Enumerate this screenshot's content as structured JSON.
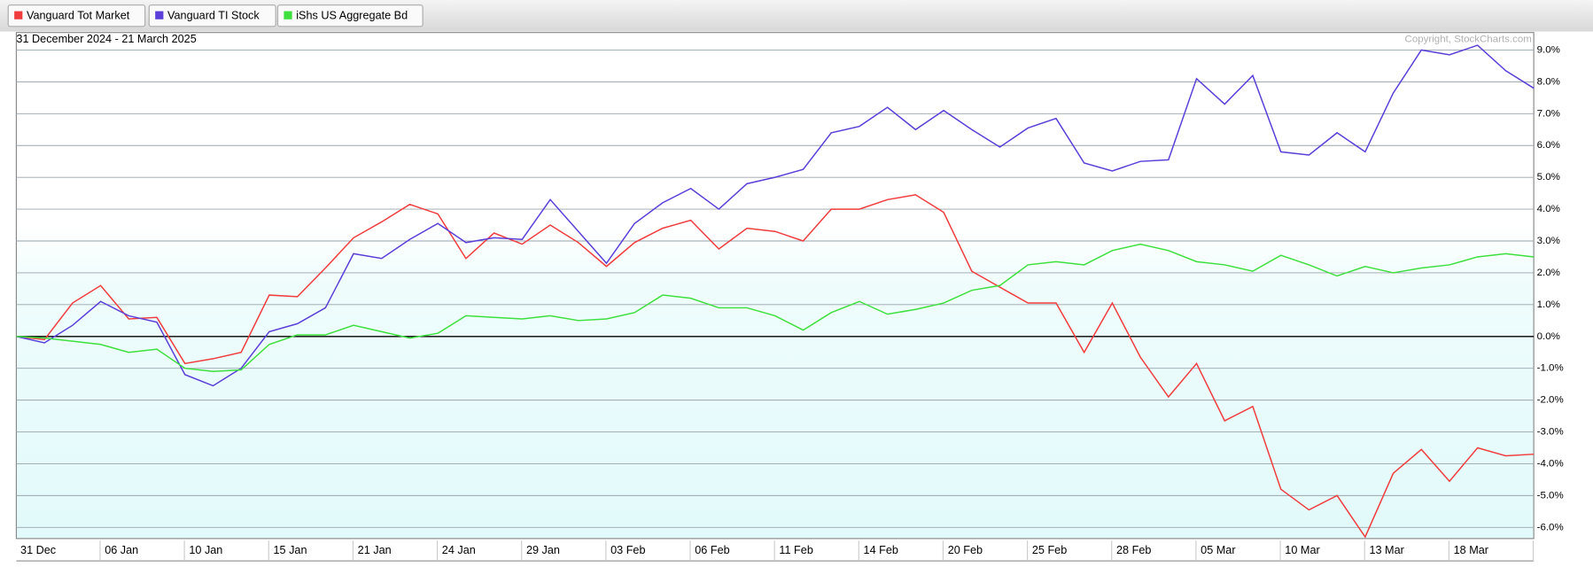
{
  "chart_data": {
    "type": "line",
    "subtitle": "31 December 2024 - 21 March 2025",
    "annotation": "Copyright, StockCharts.com",
    "categories": [
      "31 Dec",
      null,
      null,
      "06 Jan",
      null,
      null,
      "10 Jan",
      null,
      null,
      "15 Jan",
      null,
      null,
      "21 Jan",
      null,
      null,
      "24 Jan",
      null,
      null,
      "29 Jan",
      null,
      null,
      "03 Feb",
      null,
      null,
      "06 Feb",
      null,
      null,
      "11 Feb",
      null,
      null,
      "14 Feb",
      null,
      null,
      "20 Feb",
      null,
      null,
      "25 Feb",
      null,
      null,
      "28 Feb",
      null,
      null,
      "05 Mar",
      null,
      null,
      "10 Mar",
      null,
      null,
      "13 Mar",
      null,
      null,
      "18 Mar",
      null,
      null,
      null
    ],
    "series": [
      {
        "name": "Vanguard Tot Market",
        "color": "#f03c3c",
        "values": [
          0,
          -0.1,
          1.05,
          1.6,
          0.55,
          0.6,
          -0.85,
          -0.7,
          -0.5,
          1.3,
          1.25,
          2.15,
          3.1,
          3.6,
          4.15,
          3.85,
          2.45,
          3.25,
          2.9,
          3.5,
          2.95,
          2.2,
          2.95,
          3.4,
          3.65,
          2.75,
          3.4,
          3.3,
          3.0,
          4.0,
          4.0,
          4.3,
          4.45,
          3.9,
          2.05,
          1.55,
          1.05,
          1.05,
          -0.5,
          1.05,
          -0.65,
          -1.9,
          -0.85,
          -2.65,
          -2.2,
          -4.8,
          -5.45,
          -5.0,
          -6.3,
          -4.3,
          -3.55,
          -4.55,
          -3.5,
          -3.75,
          -3.7
        ]
      },
      {
        "name": "Vanguard TI Stock",
        "color": "#5a3fd9",
        "values": [
          0,
          -0.2,
          0.35,
          1.1,
          0.65,
          0.45,
          -1.2,
          -1.55,
          -1.0,
          0.15,
          0.4,
          0.9,
          2.6,
          2.45,
          3.05,
          3.55,
          2.95,
          3.1,
          3.05,
          4.3,
          3.3,
          2.3,
          3.55,
          4.2,
          4.65,
          4.0,
          4.8,
          5.0,
          5.25,
          6.4,
          6.6,
          7.2,
          6.5,
          7.1,
          6.5,
          5.95,
          6.55,
          6.85,
          5.45,
          5.2,
          5.5,
          5.55,
          8.1,
          7.3,
          8.2,
          5.8,
          5.7,
          6.4,
          5.8,
          7.65,
          9.0,
          8.85,
          9.15,
          8.35,
          7.8
        ]
      },
      {
        "name": "iShs US Aggregate Bd",
        "color": "#3de03d",
        "values": [
          0,
          -0.05,
          -0.15,
          -0.25,
          -0.5,
          -0.4,
          -1.0,
          -1.1,
          -1.05,
          -0.25,
          0.05,
          0.05,
          0.35,
          0.15,
          -0.05,
          0.1,
          0.65,
          0.6,
          0.55,
          0.65,
          0.5,
          0.55,
          0.75,
          1.3,
          1.2,
          0.9,
          0.9,
          0.65,
          0.2,
          0.75,
          1.1,
          0.7,
          0.85,
          1.05,
          1.45,
          1.6,
          2.25,
          2.35,
          2.25,
          2.7,
          2.9,
          2.7,
          2.35,
          2.25,
          2.05,
          2.55,
          2.25,
          1.9,
          2.2,
          2.0,
          2.15,
          2.25,
          2.5,
          2.6,
          2.5
        ]
      }
    ],
    "ylim": [
      -6.35,
      9.55
    ],
    "yticks": [
      {
        "value": 9,
        "label": "9.0%"
      },
      {
        "value": 8,
        "label": "8.0%"
      },
      {
        "value": 7,
        "label": "7.0%"
      },
      {
        "value": 6,
        "label": "6.0%"
      },
      {
        "value": 5,
        "label": "5.0%"
      },
      {
        "value": 4,
        "label": "4.0%"
      },
      {
        "value": 3,
        "label": "3.0%"
      },
      {
        "value": 2,
        "label": "2.0%"
      },
      {
        "value": 1,
        "label": "1.0%"
      },
      {
        "value": 0,
        "label": "0.0%"
      },
      {
        "value": -1,
        "label": "-1.0%"
      },
      {
        "value": -2,
        "label": "-2.0%"
      },
      {
        "value": -3,
        "label": "-3.0%"
      },
      {
        "value": -4,
        "label": "-4.0%"
      },
      {
        "value": -5,
        "label": "-5.0%"
      },
      {
        "value": -6,
        "label": "-6.0%"
      }
    ],
    "grid": true,
    "legend": "top-left"
  }
}
